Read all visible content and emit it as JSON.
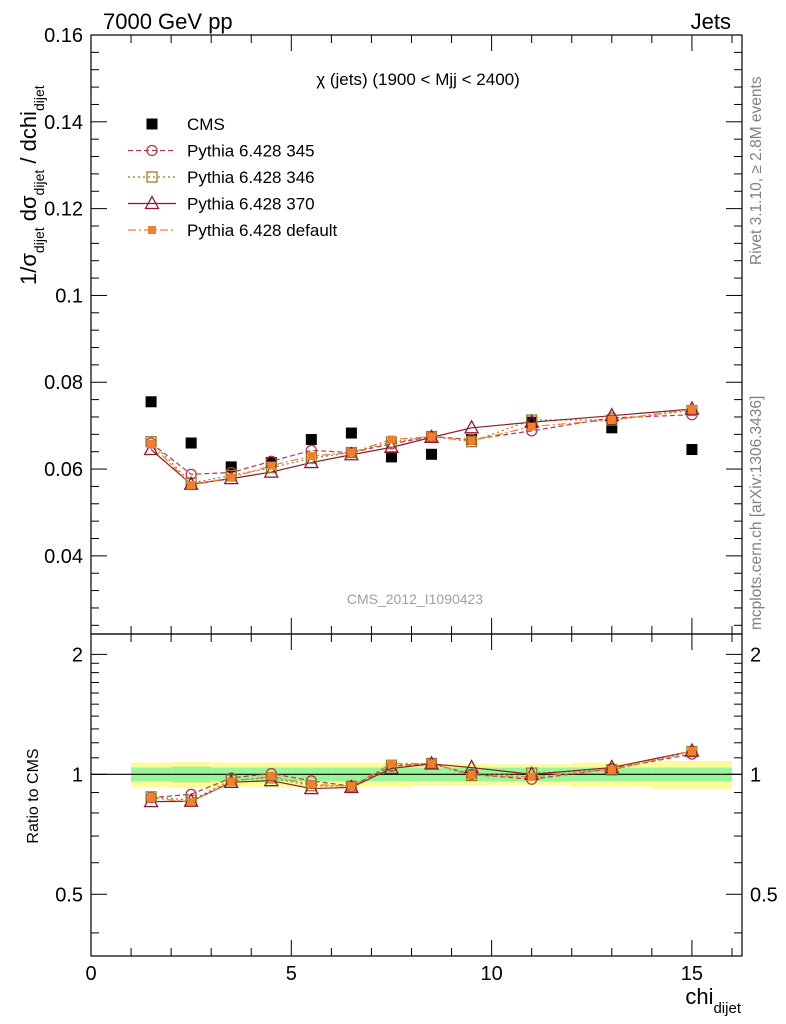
{
  "header": {
    "left": "7000 GeV pp",
    "right": "Jets"
  },
  "side_labels": {
    "rivet": "Rivet 3.1.10, ≥ 2.8M events",
    "mcplots": "mcplots.cern.ch [arXiv:1306.3436]"
  },
  "watermark": "CMS_2012_I1090423",
  "chart_data": [
    {
      "type": "scatter",
      "title": "χ (jets) (1900 < Mjj < 2400)",
      "ylabel": {
        "main": "1/σ",
        "sub1": "dijet",
        "mid": " dσ",
        "sub2": "dijet",
        "tail": " / dchi",
        "sub3": "dijet"
      },
      "xlabel": {
        "main": "chi",
        "sub": "dijet"
      },
      "xlim": [
        0,
        16.25
      ],
      "ylim": [
        0.022,
        0.16
      ],
      "yticks": [
        "0.04",
        "0.06",
        "0.08",
        "0.1",
        "0.12",
        "0.14",
        "0.16"
      ],
      "ytick_values": [
        0.04,
        0.06,
        0.08,
        0.1,
        0.12,
        0.14,
        0.16
      ],
      "series": [
        {
          "name": "CMS",
          "marker": "square-filled",
          "color": "#000000",
          "x": [
            1.5,
            2.5,
            3.5,
            4.5,
            5.5,
            6.5,
            7.5,
            8.5,
            9.5,
            11,
            13,
            15
          ],
          "y": [
            0.0755,
            0.066,
            0.0605,
            0.0615,
            0.0668,
            0.0683,
            0.0628,
            0.0634,
            0.0668,
            0.0708,
            0.0695,
            0.0645
          ]
        },
        {
          "name": "Pythia 6.428 345",
          "marker": "circle-open",
          "color": "#c0354a",
          "dash": "5,3",
          "x": [
            1.5,
            2.5,
            3.5,
            4.5,
            5.5,
            6.5,
            7.5,
            8.5,
            9.5,
            11,
            13,
            15
          ],
          "y": [
            0.066,
            0.0588,
            0.0592,
            0.0618,
            0.0643,
            0.0638,
            0.0658,
            0.0675,
            0.0668,
            0.0688,
            0.0718,
            0.0725
          ]
        },
        {
          "name": "Pythia 6.428 346",
          "marker": "square-open",
          "color": "#9a7a2e",
          "dash": "2,3",
          "x": [
            1.5,
            2.5,
            3.5,
            4.5,
            5.5,
            6.5,
            7.5,
            8.5,
            9.5,
            11,
            13,
            15
          ],
          "y": [
            0.0663,
            0.0568,
            0.0585,
            0.0603,
            0.0625,
            0.0638,
            0.0662,
            0.0675,
            0.0663,
            0.0713,
            0.0713,
            0.0735
          ]
        },
        {
          "name": "Pythia 6.428 370",
          "marker": "triangle-open",
          "color": "#8b1a2b",
          "dash": "",
          "x": [
            1.5,
            2.5,
            3.5,
            4.5,
            5.5,
            6.5,
            7.5,
            8.5,
            9.5,
            11,
            13,
            15
          ],
          "y": [
            0.0645,
            0.0565,
            0.0578,
            0.0593,
            0.0615,
            0.0633,
            0.065,
            0.0673,
            0.0695,
            0.0708,
            0.0723,
            0.0738
          ]
        },
        {
          "name": "Pythia 6.428 default",
          "marker": "square-small-filled",
          "color": "#f07f2e",
          "dash": "8,3,2,3",
          "x": [
            1.5,
            2.5,
            3.5,
            4.5,
            5.5,
            6.5,
            7.5,
            8.5,
            9.5,
            11,
            13,
            15
          ],
          "y": [
            0.0658,
            0.0563,
            0.058,
            0.0608,
            0.063,
            0.0638,
            0.0668,
            0.0675,
            0.0665,
            0.0698,
            0.0713,
            0.0738
          ]
        }
      ]
    },
    {
      "type": "scatter",
      "ylabel": "Ratio to CMS",
      "xticks": [
        "0",
        "5",
        "10",
        "15"
      ],
      "xtick_values": [
        0,
        5,
        10,
        15
      ],
      "ylim": [
        0.35,
        2.25
      ],
      "yticks": [
        "0.5",
        "1",
        "2"
      ],
      "ytick_values": [
        0.5,
        1,
        2
      ],
      "reference_line": 1,
      "bands": {
        "bins": [
          [
            1,
            2
          ],
          [
            2,
            3
          ],
          [
            3,
            4
          ],
          [
            4,
            5
          ],
          [
            5,
            6
          ],
          [
            6,
            7
          ],
          [
            7,
            8
          ],
          [
            8,
            9
          ],
          [
            9,
            10
          ],
          [
            10,
            12
          ],
          [
            12,
            14
          ],
          [
            14,
            16
          ]
        ],
        "inner": [
          0.04,
          0.045,
          0.04,
          0.04,
          0.04,
          0.04,
          0.04,
          0.04,
          0.04,
          0.04,
          0.04,
          0.04
        ],
        "outer": [
          0.07,
          0.075,
          0.07,
          0.07,
          0.07,
          0.07,
          0.07,
          0.065,
          0.065,
          0.06,
          0.07,
          0.08
        ],
        "inner_color": "#9af59a",
        "outer_color": "#fbfb9a"
      },
      "series": [
        {
          "name": "Pythia 6.428 345",
          "x": [
            1.5,
            2.5,
            3.5,
            4.5,
            5.5,
            6.5,
            7.5,
            8.5,
            9.5,
            11,
            13,
            15
          ],
          "y": [
            0.874,
            0.891,
            0.979,
            1.005,
            0.963,
            0.934,
            1.048,
            1.065,
            1.0,
            0.972,
            1.033,
            1.124
          ]
        },
        {
          "name": "Pythia 6.428 346",
          "x": [
            1.5,
            2.5,
            3.5,
            4.5,
            5.5,
            6.5,
            7.5,
            8.5,
            9.5,
            11,
            13,
            15
          ],
          "y": [
            0.878,
            0.861,
            0.967,
            0.98,
            0.936,
            0.934,
            1.054,
            1.065,
            0.993,
            1.007,
            1.026,
            1.14
          ]
        },
        {
          "name": "Pythia 6.428 370",
          "x": [
            1.5,
            2.5,
            3.5,
            4.5,
            5.5,
            6.5,
            7.5,
            8.5,
            9.5,
            11,
            13,
            15
          ],
          "y": [
            0.854,
            0.856,
            0.955,
            0.964,
            0.921,
            0.927,
            1.035,
            1.062,
            1.04,
            1.0,
            1.04,
            1.144
          ]
        },
        {
          "name": "Pythia 6.428 default",
          "x": [
            1.5,
            2.5,
            3.5,
            4.5,
            5.5,
            6.5,
            7.5,
            8.5,
            9.5,
            11,
            13,
            15
          ],
          "y": [
            0.872,
            0.853,
            0.959,
            0.989,
            0.943,
            0.934,
            1.064,
            1.065,
            0.996,
            0.986,
            1.026,
            1.144
          ]
        }
      ]
    }
  ]
}
